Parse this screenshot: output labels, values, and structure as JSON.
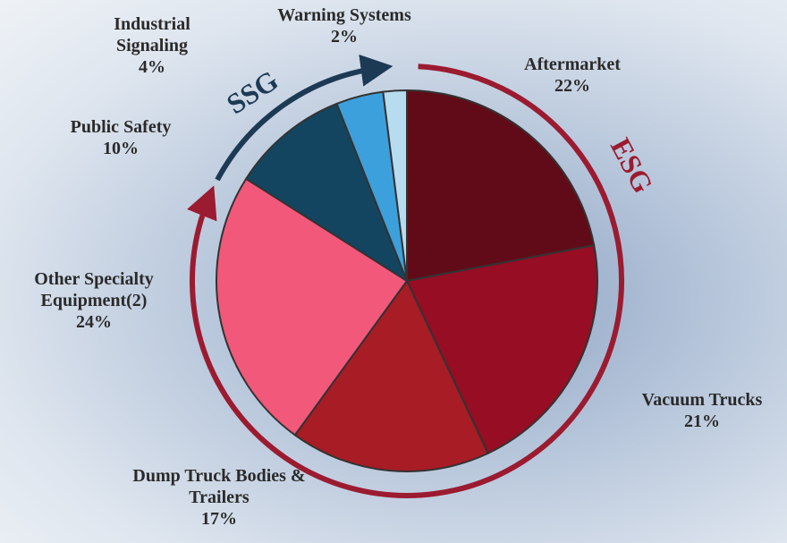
{
  "chart_data": {
    "type": "pie",
    "categories": [
      "Aftermarket",
      "Vacuum Trucks",
      "Dump Truck Bodies & Trailers",
      "Other Specialty Equipment(2)",
      "Public Safety",
      "Industrial Signaling",
      "Warning Systems"
    ],
    "values": [
      22,
      21,
      17,
      24,
      10,
      4,
      2
    ],
    "value_labels": [
      "22%",
      "21%",
      "17%",
      "24%",
      "10%",
      "4%",
      "2%"
    ],
    "colors": [
      "#620b18",
      "#960d24",
      "#a81c25",
      "#f2587a",
      "#134560",
      "#3ca0dc",
      "#b7dcf0"
    ],
    "annotations": [
      "SSG",
      "ESG"
    ]
  }
}
